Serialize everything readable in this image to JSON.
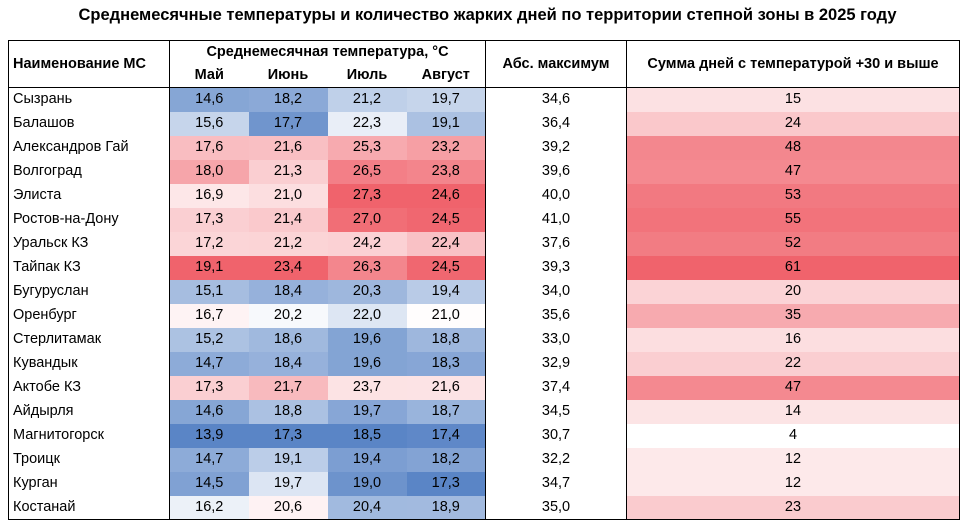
{
  "chart_data": {
    "type": "table",
    "title": "Среднемесячные температуры и количество жарких дней по территории степной зоны в 2025 году",
    "header": {
      "name": "Наименование МС",
      "temp_group": "Среднемесячная температура, °С",
      "months": [
        "Май",
        "Июнь",
        "Июль",
        "Август"
      ],
      "abs_max": "Абс. максимум",
      "hot_days": "Сумма дней с температурой +30 и выше"
    },
    "rows": [
      {
        "name": "Сызрань",
        "temps": [
          "14,6",
          "18,2",
          "21,2",
          "19,7"
        ],
        "abs_max": "34,6",
        "hot_days": "15"
      },
      {
        "name": "Балашов",
        "temps": [
          "15,6",
          "17,7",
          "22,3",
          "19,1"
        ],
        "abs_max": "36,4",
        "hot_days": "24"
      },
      {
        "name": "Александров Гай",
        "temps": [
          "17,6",
          "21,6",
          "25,3",
          "23,2"
        ],
        "abs_max": "39,2",
        "hot_days": "48"
      },
      {
        "name": "Волгоград",
        "temps": [
          "18,0",
          "21,3",
          "26,5",
          "23,8"
        ],
        "abs_max": "39,6",
        "hot_days": "47"
      },
      {
        "name": "Элиста",
        "temps": [
          "16,9",
          "21,0",
          "27,3",
          "24,6"
        ],
        "abs_max": "40,0",
        "hot_days": "53"
      },
      {
        "name": "Ростов-на-Дону",
        "temps": [
          "17,3",
          "21,4",
          "27,0",
          "24,5"
        ],
        "abs_max": "41,0",
        "hot_days": "55"
      },
      {
        "name": "Уральск КЗ",
        "temps": [
          "17,2",
          "21,2",
          "24,2",
          "22,4"
        ],
        "abs_max": "37,6",
        "hot_days": "52"
      },
      {
        "name": "Тайпак КЗ",
        "temps": [
          "19,1",
          "23,4",
          "26,3",
          "24,5"
        ],
        "abs_max": "39,3",
        "hot_days": "61"
      },
      {
        "name": "Бугуруслан",
        "temps": [
          "15,1",
          "18,4",
          "20,3",
          "19,4"
        ],
        "abs_max": "34,0",
        "hot_days": "20"
      },
      {
        "name": "Оренбург",
        "temps": [
          "16,7",
          "20,2",
          "22,0",
          "21,0"
        ],
        "abs_max": "35,6",
        "hot_days": "35"
      },
      {
        "name": "Стерлитамак",
        "temps": [
          "15,2",
          "18,6",
          "19,6",
          "18,8"
        ],
        "abs_max": "33,0",
        "hot_days": "16"
      },
      {
        "name": "Кувандык",
        "temps": [
          "14,7",
          "18,4",
          "19,6",
          "18,3"
        ],
        "abs_max": "32,9",
        "hot_days": "22"
      },
      {
        "name": "Актобе КЗ",
        "temps": [
          "17,3",
          "21,7",
          "23,7",
          "21,6"
        ],
        "abs_max": "37,4",
        "hot_days": "47"
      },
      {
        "name": "Айдырля",
        "temps": [
          "14,6",
          "18,8",
          "19,7",
          "18,7"
        ],
        "abs_max": "34,5",
        "hot_days": "14"
      },
      {
        "name": "Магнитогорск",
        "temps": [
          "13,9",
          "17,3",
          "18,5",
          "17,4"
        ],
        "abs_max": "30,7",
        "hot_days": "4"
      },
      {
        "name": "Троицк",
        "temps": [
          "14,7",
          "19,1",
          "19,4",
          "18,2"
        ],
        "abs_max": "32,2",
        "hot_days": "12"
      },
      {
        "name": "Курган",
        "temps": [
          "14,5",
          "19,7",
          "19,0",
          "17,3"
        ],
        "abs_max": "34,7",
        "hot_days": "12"
      },
      {
        "name": "Костанай",
        "temps": [
          "16,2",
          "20,6",
          "20,4",
          "18,9"
        ],
        "abs_max": "35,0",
        "hot_days": "23"
      }
    ],
    "colors": {
      "temp_cold": "#5a85c6",
      "temp_mid": "#ffffff",
      "temp_hot": "#f0636c",
      "days_low": "#ffffff",
      "days_high": "#f0636c"
    }
  }
}
